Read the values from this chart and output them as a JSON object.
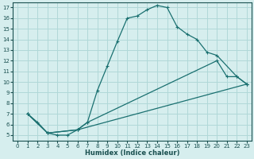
{
  "xlabel": "Humidex (Indice chaleur)",
  "background_color": "#d6eeee",
  "grid_color": "#b0d8d8",
  "line_color": "#1a7070",
  "xlim": [
    -0.5,
    23.5
  ],
  "ylim": [
    4.5,
    17.5
  ],
  "xticks": [
    0,
    1,
    2,
    3,
    4,
    5,
    6,
    7,
    8,
    9,
    10,
    11,
    12,
    13,
    14,
    15,
    16,
    17,
    18,
    19,
    20,
    21,
    22,
    23
  ],
  "yticks": [
    5,
    6,
    7,
    8,
    9,
    10,
    11,
    12,
    13,
    14,
    15,
    16,
    17
  ],
  "line1_x": [
    1,
    2,
    3,
    4,
    5,
    6,
    7,
    8,
    9,
    10,
    11,
    12,
    13,
    14,
    15,
    16,
    17,
    18,
    19,
    20,
    22,
    23
  ],
  "line1_y": [
    7,
    6.2,
    5.2,
    5.0,
    5.0,
    5.5,
    6.2,
    9.2,
    11.5,
    13.8,
    16.0,
    16.2,
    16.8,
    17.2,
    17.0,
    15.2,
    14.5,
    14.0,
    12.8,
    12.5,
    10.5,
    9.8
  ],
  "line2_x": [
    1,
    3,
    6,
    7,
    20,
    21,
    22,
    23
  ],
  "line2_y": [
    7,
    5.2,
    5.5,
    6.2,
    12.0,
    10.5,
    10.5,
    9.8
  ],
  "line3_x": [
    1,
    3,
    6,
    23
  ],
  "line3_y": [
    7,
    5.2,
    5.5,
    9.8
  ]
}
